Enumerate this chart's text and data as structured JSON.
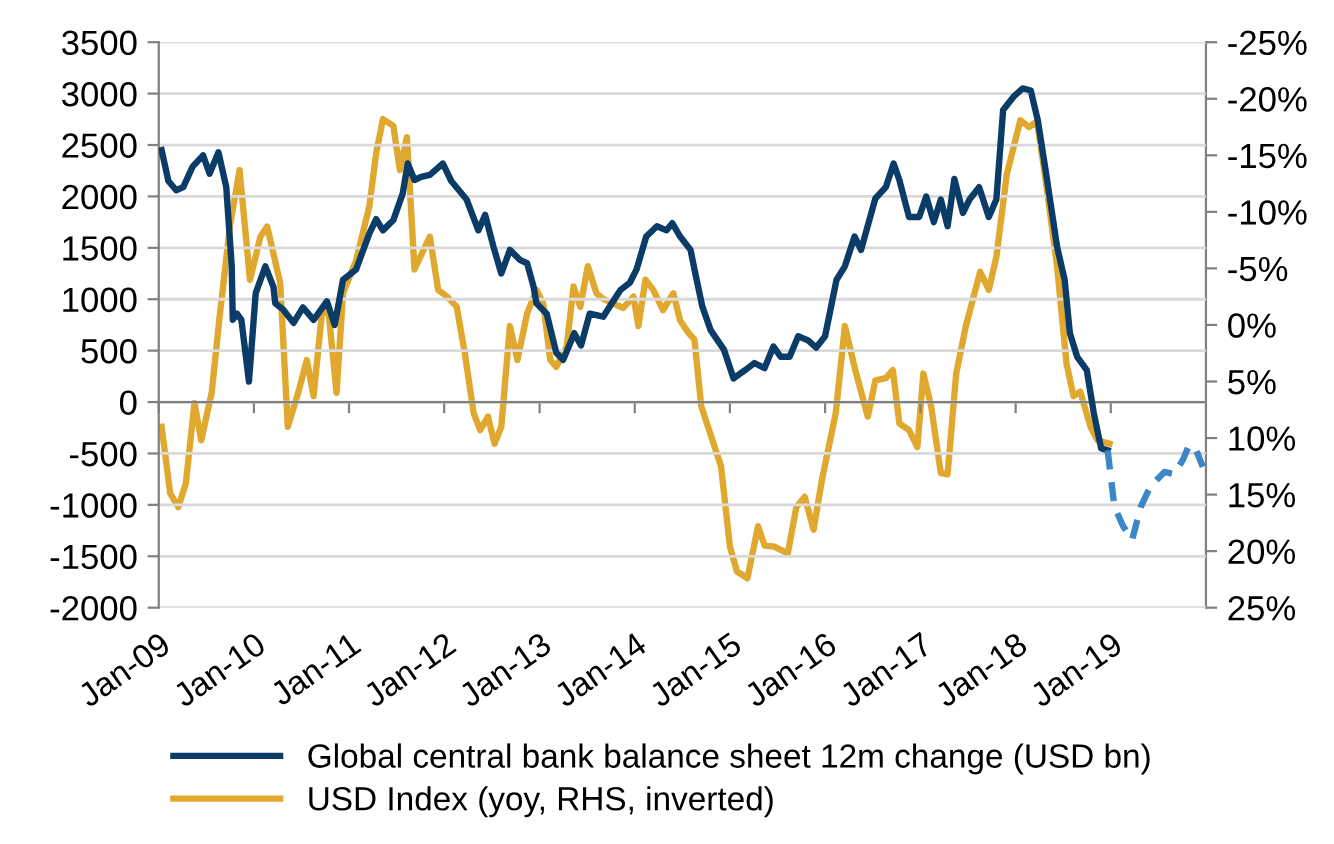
{
  "chart_data": {
    "type": "line",
    "xlim": [
      "2009-01-01",
      "2020-01-01"
    ],
    "xticks": [
      {
        "value": "2009-01-01",
        "label": "Jan-09"
      },
      {
        "value": "2010-01-01",
        "label": "Jan-10"
      },
      {
        "value": "2011-01-01",
        "label": "Jan-11"
      },
      {
        "value": "2012-01-01",
        "label": "Jan-12"
      },
      {
        "value": "2013-01-01",
        "label": "Jan-13"
      },
      {
        "value": "2014-01-01",
        "label": "Jan-14"
      },
      {
        "value": "2015-01-01",
        "label": "Jan-15"
      },
      {
        "value": "2016-01-01",
        "label": "Jan-16"
      },
      {
        "value": "2017-01-01",
        "label": "Jan-17"
      },
      {
        "value": "2018-01-01",
        "label": "Jan-18"
      },
      {
        "value": "2019-01-01",
        "label": "Jan-19"
      }
    ],
    "ylim": [
      -2000,
      3500
    ],
    "yticks": [
      -2000,
      -1500,
      -1000,
      -500,
      0,
      500,
      1000,
      1500,
      2000,
      2500,
      3000,
      3500
    ],
    "y2lim": [
      25,
      -25
    ],
    "y2ticks": [
      {
        "value": -25,
        "label": "-25%"
      },
      {
        "value": -20,
        "label": "-20%"
      },
      {
        "value": -15,
        "label": "-15%"
      },
      {
        "value": -10,
        "label": "-10%"
      },
      {
        "value": -5,
        "label": "-5%"
      },
      {
        "value": 0,
        "label": "0%"
      },
      {
        "value": 5,
        "label": "5%"
      },
      {
        "value": 10,
        "label": "10%"
      },
      {
        "value": 15,
        "label": "15%"
      },
      {
        "value": 20,
        "label": "20%"
      },
      {
        "value": 25,
        "label": "25%"
      }
    ],
    "grid": "y",
    "legend": "bottom",
    "series": [
      {
        "name": "Global central bank balance sheet 12m change (USD bn)",
        "color": "#0b3c68",
        "line_style": "solid",
        "x": [
          "2009-01-12",
          "2009-02-07",
          "2009-03-09",
          "2009-04-05",
          "2009-05-11",
          "2009-06-20",
          "2009-07-15",
          "2009-08-18",
          "2009-09-17",
          "2009-10-08",
          "2009-10-12",
          "2009-10-28",
          "2009-11-14",
          "2009-12-13",
          "2010-01-08",
          "2010-02-14",
          "2010-03-17",
          "2010-03-24",
          "2010-04-23",
          "2010-06-02",
          "2010-07-08",
          "2010-08-18",
          "2010-10-08",
          "2010-11-07",
          "2010-12-09",
          "2011-01-28",
          "2011-03-20",
          "2011-04-15",
          "2011-05-11",
          "2011-06-20",
          "2011-07-26",
          "2011-08-14",
          "2011-09-09",
          "2011-10-05",
          "2011-11-07",
          "2011-12-27",
          "2012-01-28",
          "2012-03-27",
          "2012-05-11",
          "2012-06-06",
          "2012-07-08",
          "2012-08-07",
          "2012-09-09",
          "2012-10-19",
          "2012-11-14",
          "2012-12-09",
          "2012-12-20",
          "2013-01-28",
          "2013-03-06",
          "2013-04-01",
          "2013-04-23",
          "2013-05-14",
          "2013-06-09",
          "2013-07-12",
          "2013-09-02",
          "2013-09-27",
          "2013-11-07",
          "2013-12-13",
          "2014-01-08",
          "2014-02-14",
          "2014-03-27",
          "2014-05-03",
          "2014-05-25",
          "2014-06-24",
          "2014-08-03",
          "2014-08-18",
          "2014-09-17",
          "2014-10-19",
          "2014-12-09",
          "2015-01-15",
          "2015-02-28",
          "2015-04-05",
          "2015-05-14",
          "2015-06-17",
          "2015-07-15",
          "2015-08-18",
          "2015-09-20",
          "2015-10-28",
          "2015-11-28",
          "2016-01-01",
          "2016-02-14",
          "2016-03-17",
          "2016-04-23",
          "2016-05-18",
          "2016-07-12",
          "2016-08-21",
          "2016-09-20",
          "2016-10-12",
          "2016-11-18",
          "2016-12-27",
          "2017-01-23",
          "2017-02-21",
          "2017-03-20",
          "2017-04-15",
          "2017-05-11",
          "2017-06-13",
          "2017-07-08",
          "2017-08-14",
          "2017-09-20",
          "2017-10-19",
          "2017-11-14",
          "2017-12-24",
          "2018-01-28",
          "2018-02-28",
          "2018-03-27",
          "2018-04-28",
          "2018-06-09",
          "2018-07-08",
          "2018-07-28",
          "2018-08-25",
          "2018-10-01",
          "2018-10-28",
          "2018-11-25",
          "2018-12-20"
        ],
        "values": [
          2450,
          2150,
          2060,
          2090,
          2290,
          2400,
          2220,
          2430,
          2090,
          1320,
          800,
          860,
          800,
          200,
          1060,
          1320,
          1120,
          960,
          900,
          770,
          920,
          800,
          980,
          750,
          1190,
          1290,
          1640,
          1780,
          1670,
          1770,
          2030,
          2320,
          2160,
          2190,
          2210,
          2320,
          2150,
          1970,
          1670,
          1820,
          1510,
          1250,
          1480,
          1380,
          1350,
          1120,
          960,
          860,
          480,
          410,
          540,
          670,
          550,
          860,
          830,
          930,
          1090,
          1160,
          1290,
          1610,
          1710,
          1670,
          1740,
          1610,
          1480,
          1290,
          930,
          700,
          510,
          230,
          310,
          380,
          330,
          540,
          440,
          440,
          640,
          600,
          530,
          640,
          1190,
          1320,
          1610,
          1480,
          1980,
          2090,
          2320,
          2160,
          1800,
          1800,
          2000,
          1750,
          1970,
          1710,
          2170,
          1840,
          1970,
          2090,
          1800,
          1970,
          2840,
          2970,
          3050,
          3030,
          2740,
          2220,
          1510,
          1190,
          670,
          440,
          310,
          -110,
          -450,
          -470
        ]
      },
      {
        "color": "#3b87c8",
        "line_style": "dashed",
        "x": [
          "2018-12-20",
          "2019-01-15",
          "2019-02-18",
          "2019-03-24",
          "2019-04-26",
          "2019-06-02",
          "2019-07-26",
          "2019-09-02",
          "2019-10-05",
          "2019-10-28",
          "2019-11-25",
          "2019-12-20"
        ],
        "values": [
          -470,
          -1020,
          -1210,
          -1340,
          -1020,
          -820,
          -680,
          -700,
          -560,
          -420,
          -470,
          -630
        ]
      },
      {
        "name": "USD Index (yoy, RHS, inverted)",
        "color": "#e0a82e",
        "line_style": "solid",
        "axis": "y2",
        "x": [
          "2009-01-12",
          "2009-02-14",
          "2009-03-17",
          "2009-04-15",
          "2009-05-18",
          "2009-06-13",
          "2009-07-23",
          "2009-08-21",
          "2009-10-01",
          "2009-11-07",
          "2009-12-17",
          "2010-01-26",
          "2010-02-21",
          "2010-04-12",
          "2010-05-11",
          "2010-06-20",
          "2010-07-23",
          "2010-08-18",
          "2010-09-20",
          "2010-10-15",
          "2010-11-14",
          "2010-12-09",
          "2011-01-28",
          "2011-03-20",
          "2011-04-15",
          "2011-05-11",
          "2011-06-20",
          "2011-07-15",
          "2011-08-11",
          "2011-09-09",
          "2011-10-01",
          "2011-11-07",
          "2011-12-09",
          "2012-01-12",
          "2012-02-18",
          "2012-03-20",
          "2012-04-23",
          "2012-05-18",
          "2012-06-17",
          "2012-07-12",
          "2012-08-07",
          "2012-09-09",
          "2012-10-08",
          "2012-11-14",
          "2012-12-20",
          "2013-01-15",
          "2013-02-11",
          "2013-03-06",
          "2013-04-15",
          "2013-05-11",
          "2013-06-06",
          "2013-07-05",
          "2013-08-07",
          "2013-09-02",
          "2013-11-18",
          "2013-12-27",
          "2014-01-15",
          "2014-02-11",
          "2014-03-13",
          "2014-04-19",
          "2014-05-29",
          "2014-06-24",
          "2014-07-26",
          "2014-08-18",
          "2014-09-13",
          "2014-10-26",
          "2014-11-28",
          "2015-01-01",
          "2015-01-28",
          "2015-03-09",
          "2015-04-19",
          "2015-05-14",
          "2015-06-20",
          "2015-08-11",
          "2015-09-13",
          "2015-10-15",
          "2015-11-18",
          "2015-12-20",
          "2016-02-11",
          "2016-03-17",
          "2016-04-26",
          "2016-06-13",
          "2016-07-12",
          "2016-08-21",
          "2016-09-17",
          "2016-10-12",
          "2016-11-18",
          "2016-12-20",
          "2017-01-12",
          "2017-02-11",
          "2017-03-20",
          "2017-04-15",
          "2017-05-18",
          "2017-06-24",
          "2017-08-18",
          "2017-09-20",
          "2017-10-19",
          "2017-11-28",
          "2018-01-19",
          "2018-02-21",
          "2018-03-24",
          "2018-04-28",
          "2018-06-09",
          "2018-07-15",
          "2018-08-11",
          "2018-09-06",
          "2018-10-15",
          "2018-11-11",
          "2018-12-27"
        ],
        "values": [
          9.0,
          14.9,
          16.1,
          14.0,
          6.9,
          10.2,
          6.0,
          -0.4,
          -8.7,
          -13.7,
          -4.0,
          -7.8,
          -8.7,
          -3.7,
          9.0,
          6.0,
          3.1,
          6.3,
          -1.3,
          -1.0,
          6.0,
          -2.8,
          -5.7,
          -10.5,
          -15.2,
          -18.2,
          -17.6,
          -13.7,
          -16.6,
          -4.9,
          -6.0,
          -7.8,
          -3.1,
          -2.5,
          -1.6,
          2.5,
          7.8,
          9.3,
          8.1,
          10.5,
          9.0,
          0.1,
          3.1,
          -1.0,
          -3.1,
          -1.9,
          3.1,
          3.7,
          1.9,
          -3.4,
          -1.6,
          -5.2,
          -2.8,
          -2.3,
          -1.5,
          -2.5,
          0.1,
          -4.0,
          -3.1,
          -1.3,
          -2.8,
          -0.4,
          0.7,
          1.3,
          7.2,
          10.2,
          12.5,
          19.6,
          21.8,
          22.4,
          17.8,
          19.5,
          19.6,
          20.2,
          16.1,
          15.2,
          18.1,
          13.7,
          7.8,
          0.1,
          4.0,
          8.1,
          4.9,
          4.7,
          4.0,
          8.7,
          9.3,
          10.8,
          4.3,
          7.2,
          13.1,
          13.2,
          4.3,
          0.1,
          -4.7,
          -3.1,
          -6.0,
          -13.3,
          -18.1,
          -17.5,
          -18.0,
          -12.5,
          -5.2,
          3.4,
          6.3,
          5.9,
          9.0,
          10.2,
          10.5
        ]
      }
    ]
  }
}
